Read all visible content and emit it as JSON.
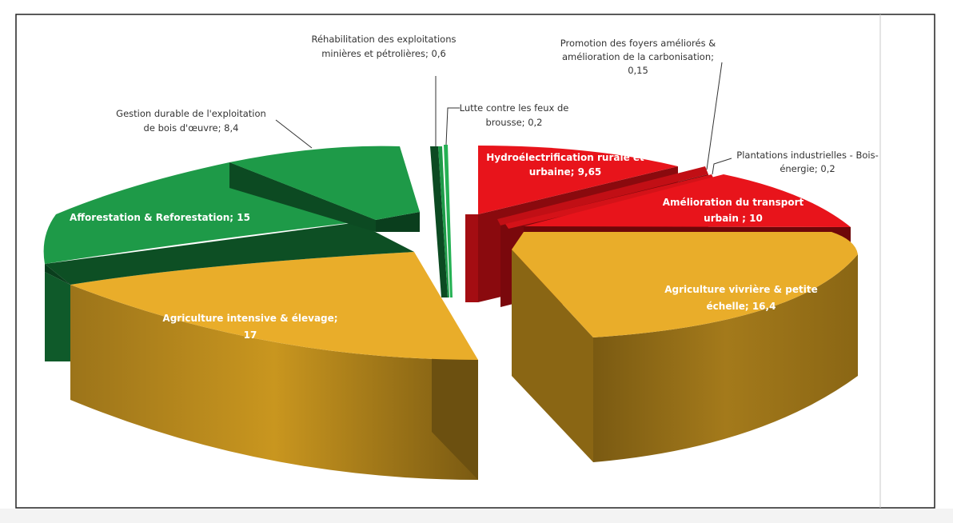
{
  "chart_data": {
    "type": "pie",
    "style": "3d-exploded",
    "title": "",
    "legend": "none",
    "slices": [
      {
        "label_lines": [
          "Hydroélectrification rurale et",
          "urbaine; 9,65"
        ],
        "category": "Hydroélectrification rurale et urbaine",
        "value": 9.65,
        "color": "#e8141b",
        "label_color": "white"
      },
      {
        "label_lines": [
          "Promotion des foyers améliorés &",
          "amélioration de la carbonisation;",
          "0,15"
        ],
        "category": "Promotion des foyers améliorés & amélioration de la carbonisation",
        "value": 0.15,
        "color": "#e8141b",
        "label_color": "dark"
      },
      {
        "label_lines": [
          "Plantations industrielles - Bois-",
          "énergie; 0,2"
        ],
        "category": "Plantations industrielles - Bois-énergie",
        "value": 0.2,
        "color": "#e8141b",
        "label_color": "dark"
      },
      {
        "label_lines": [
          "Amélioration du  transport",
          "urbain ; 10"
        ],
        "category": "Amélioration du transport urbain",
        "value": 10,
        "color": "#e8141b",
        "label_color": "white"
      },
      {
        "label_lines": [
          "Agriculture vivrière & petite",
          "échelle; 16,4"
        ],
        "category": "Agriculture vivrière & petite échelle",
        "value": 16.4,
        "color": "#e9ad2a",
        "label_color": "white"
      },
      {
        "label_lines": [
          "Agriculture intensive & élevage;",
          "17"
        ],
        "category": "Agriculture intensive & élevage",
        "value": 17,
        "color": "#e9ad2a",
        "label_color": "white"
      },
      {
        "label_lines": [
          "Afforestation & Reforestation; 15"
        ],
        "category": "Afforestation & Reforestation",
        "value": 15,
        "color": "#1e9a48",
        "label_color": "white"
      },
      {
        "label_lines": [
          "Gestion durable de l'exploitation",
          "de bois d'œuvre; 8,4"
        ],
        "category": "Gestion durable de l'exploitation de bois d'œuvre",
        "value": 8.4,
        "color": "#1e9a48",
        "label_color": "dark"
      },
      {
        "label_lines": [
          "Réhabilitation des exploitations",
          "minières et pétrolières; 0,6"
        ],
        "category": "Réhabilitation des exploitations minières et pétrolières",
        "value": 0.6,
        "color": "#1e9a48",
        "label_color": "dark"
      },
      {
        "label_lines": [
          "Lutte contre les feux de",
          "brousse; 0,2"
        ],
        "category": "Lutte contre les feux de brousse",
        "value": 0.2,
        "color": "#1e9a48",
        "label_color": "dark"
      }
    ]
  }
}
